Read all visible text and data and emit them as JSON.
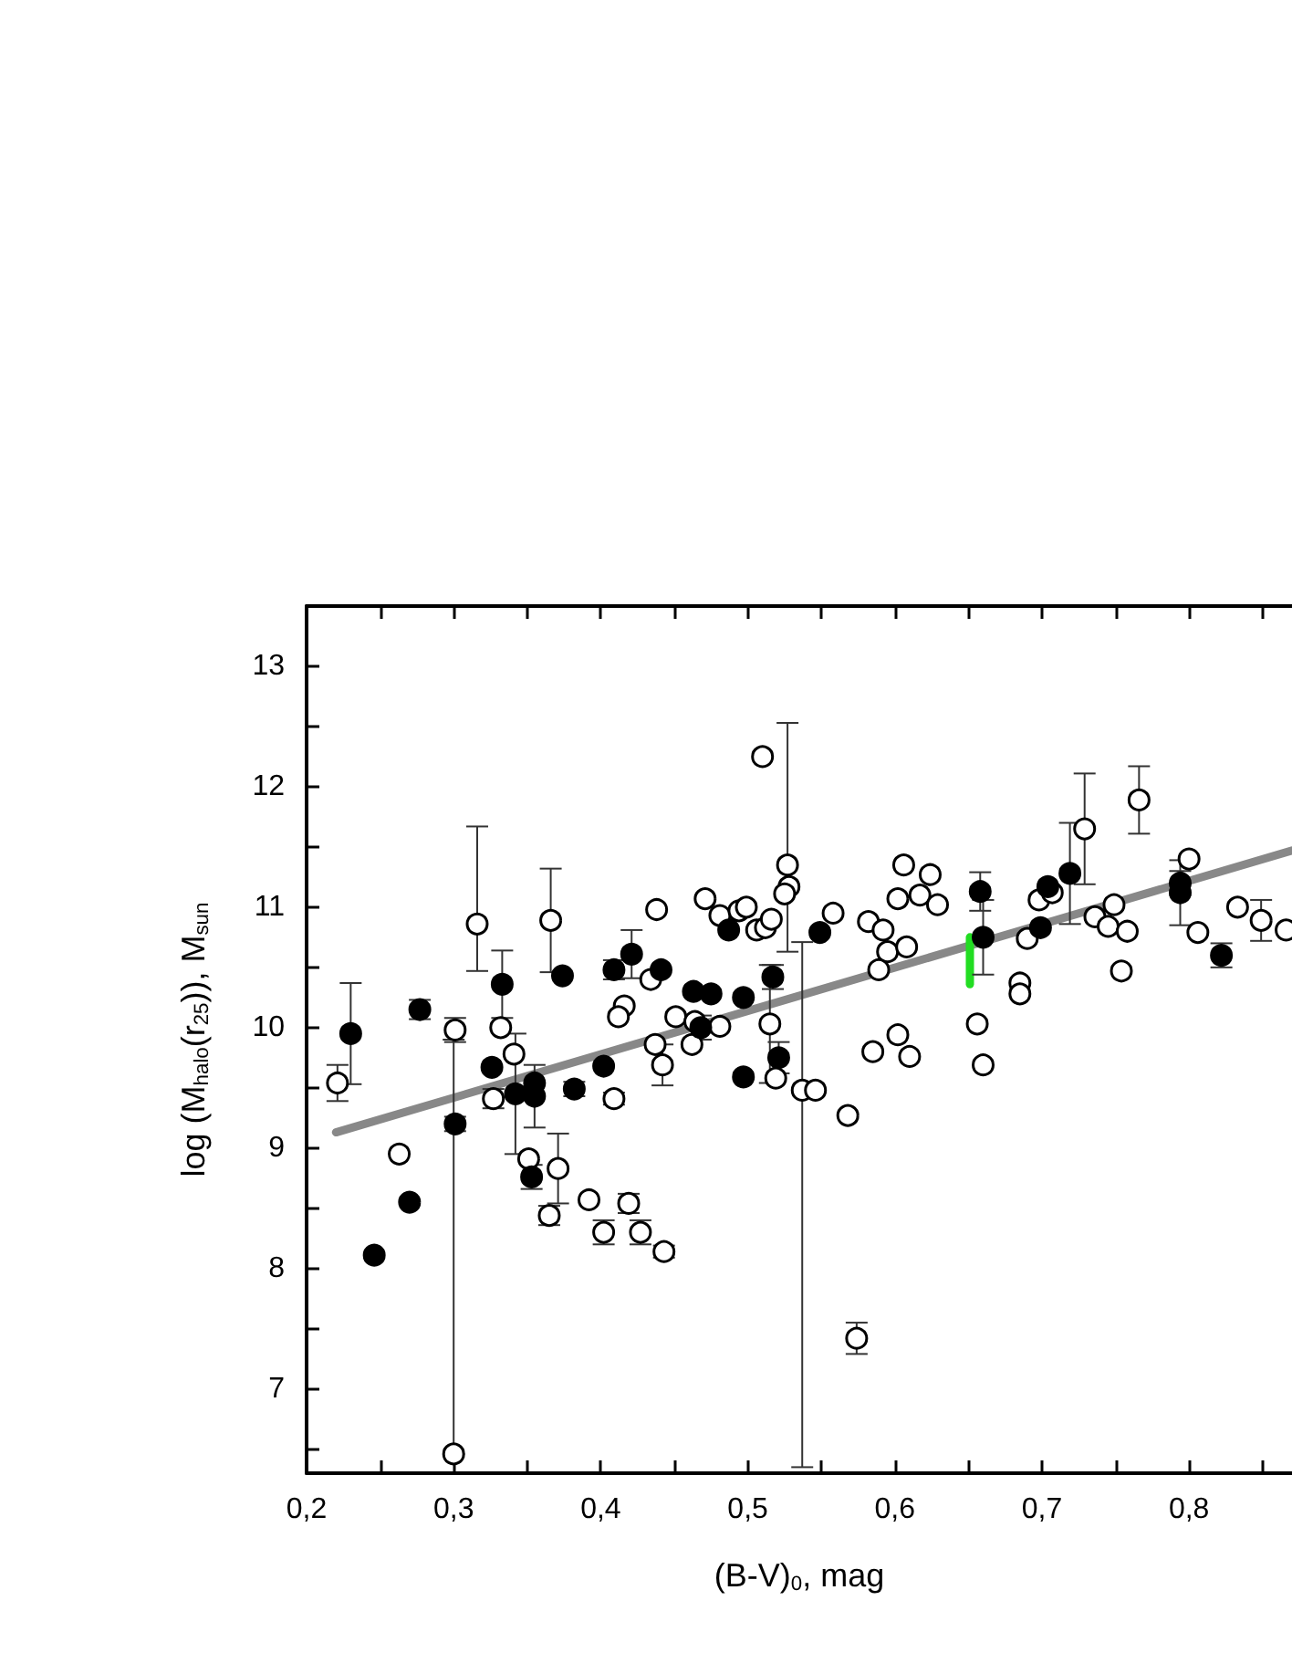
{
  "chart_data": {
    "type": "scatter",
    "xlabel": "(B-V)$_{0}$, mag",
    "ylabel": "log (M$_{halo}$(r$_{25}$)), M$_{sun}$",
    "xlim": [
      0.2,
      0.87
    ],
    "ylim": [
      6.3,
      13.5
    ],
    "xticks": [
      {
        "value": 0.2,
        "label": "0,2"
      },
      {
        "value": 0.25,
        "label": null
      },
      {
        "value": 0.3,
        "label": "0,3"
      },
      {
        "value": 0.35,
        "label": null
      },
      {
        "value": 0.4,
        "label": "0,4"
      },
      {
        "value": 0.45,
        "label": null
      },
      {
        "value": 0.5,
        "label": "0,5"
      },
      {
        "value": 0.55,
        "label": null
      },
      {
        "value": 0.6,
        "label": "0,6"
      },
      {
        "value": 0.65,
        "label": null
      },
      {
        "value": 0.7,
        "label": "0,7"
      },
      {
        "value": 0.75,
        "label": null
      },
      {
        "value": 0.8,
        "label": "0,8"
      },
      {
        "value": 0.85,
        "label": null
      }
    ],
    "yticks": [
      {
        "value": 6.5,
        "label": null
      },
      7,
      {
        "value": 7.5,
        "label": null
      },
      8,
      {
        "value": 8.5,
        "label": null
      },
      9,
      {
        "value": 9.5,
        "label": null
      },
      10,
      {
        "value": 10.5,
        "label": null
      },
      11,
      {
        "value": 11.5,
        "label": null
      },
      12,
      {
        "value": 12.5,
        "label": null
      },
      13
    ],
    "marker": "circle",
    "series": [
      {
        "type": "line",
        "marker": "none",
        "color": "#888888",
        "x": [
          0.22,
          0.87
        ],
        "values": [
          9.13,
          11.47
        ]
      },
      {
        "type": "line",
        "marker": "none",
        "color": "#22dd22",
        "x": [
          0.651,
          0.651
        ],
        "values": [
          10.36,
          10.75
        ]
      },
      {
        "color": "#000000",
        "x": [
          0.23,
          0.277,
          0.333,
          0.374,
          0.409,
          0.421,
          0.301,
          0.27,
          0.246,
          0.326,
          0.342,
          0.355,
          0.355,
          0.353,
          0.382,
          0.402,
          0.441,
          0.463,
          0.475,
          0.468,
          0.487,
          0.497,
          0.497,
          0.517,
          0.521,
          0.549,
          0.658,
          0.66,
          0.699,
          0.704,
          0.719,
          0.794,
          0.794,
          0.822
        ],
        "values": [
          9.95,
          10.15,
          10.36,
          10.43,
          10.48,
          10.61,
          9.2,
          8.55,
          8.11,
          9.67,
          9.45,
          9.54,
          9.43,
          8.76,
          9.49,
          9.68,
          10.48,
          10.3,
          10.28,
          10.0,
          10.81,
          10.25,
          9.59,
          10.42,
          9.75,
          10.79,
          11.13,
          10.75,
          10.83,
          11.17,
          11.28,
          11.2,
          11.12,
          10.6
        ],
        "errors": [
          0.42,
          0.08,
          0.28,
          null,
          0.08,
          0.2,
          0.06,
          null,
          null,
          null,
          0.5,
          null,
          0.26,
          0.1,
          0.06,
          null,
          null,
          null,
          null,
          0.1,
          null,
          null,
          null,
          0.1,
          0.13,
          null,
          0.16,
          0.31,
          null,
          null,
          0.42,
          0.1,
          0.27,
          0.1
        ]
      },
      {
        "color": "#ffffff",
        "x": [
          0.221,
          0.316,
          0.366,
          0.416,
          0.412,
          0.301,
          0.3,
          0.263,
          0.332,
          0.341,
          0.327,
          0.351,
          0.371,
          0.365,
          0.409,
          0.392,
          0.402,
          0.419,
          0.427,
          0.443,
          0.51,
          0.527,
          0.528,
          0.525,
          0.537,
          0.546,
          0.438,
          0.434,
          0.451,
          0.437,
          0.442,
          0.462,
          0.464,
          0.481,
          0.471,
          0.481,
          0.494,
          0.499,
          0.506,
          0.512,
          0.516,
          0.515,
          0.519,
          0.558,
          0.568,
          0.574,
          0.582,
          0.592,
          0.595,
          0.589,
          0.608,
          0.606,
          0.602,
          0.617,
          0.624,
          0.629,
          0.585,
          0.602,
          0.61,
          0.656,
          0.66,
          0.69,
          0.685,
          0.685,
          0.698,
          0.707,
          0.729,
          0.766,
          0.736,
          0.745,
          0.749,
          0.758,
          0.754,
          0.8,
          0.806,
          0.833,
          0.849,
          0.866
        ],
        "values": [
          9.54,
          10.86,
          10.89,
          10.18,
          10.09,
          9.98,
          6.46,
          8.95,
          10.0,
          9.78,
          9.41,
          8.91,
          8.83,
          8.44,
          9.41,
          8.57,
          8.3,
          8.54,
          8.3,
          8.14,
          12.25,
          11.35,
          11.17,
          11.11,
          9.48,
          9.48,
          10.98,
          10.4,
          10.09,
          9.86,
          9.69,
          9.86,
          10.05,
          10.01,
          11.07,
          10.93,
          10.97,
          11.0,
          10.81,
          10.83,
          10.9,
          10.03,
          9.58,
          10.95,
          9.27,
          7.42,
          10.88,
          10.81,
          10.63,
          10.48,
          10.67,
          11.35,
          11.07,
          11.1,
          11.27,
          11.02,
          9.8,
          9.94,
          9.76,
          10.03,
          9.69,
          10.74,
          10.37,
          10.28,
          11.06,
          11.12,
          11.65,
          11.89,
          10.92,
          10.84,
          11.02,
          10.8,
          10.47,
          11.4,
          10.79,
          11.0,
          10.89,
          10.81
        ],
        "errors": [
          0.15,
          [
            10.47,
            11.67
          ],
          0.43,
          null,
          null,
          0.1,
          [
            6.46,
            9.9
          ],
          null,
          null,
          null,
          0.08,
          null,
          0.29,
          0.08,
          0.05,
          null,
          0.1,
          0.08,
          0.1,
          0.05,
          null,
          [
            10.63,
            12.53
          ],
          null,
          null,
          [
            6.35,
            10.71
          ],
          null,
          null,
          null,
          null,
          null,
          0.17,
          null,
          null,
          null,
          null,
          null,
          null,
          null,
          null,
          null,
          null,
          0.49,
          null,
          null,
          null,
          0.13,
          null,
          null,
          null,
          null,
          null,
          null,
          null,
          null,
          null,
          null,
          null,
          null,
          null,
          null,
          null,
          null,
          null,
          null,
          null,
          null,
          0.46,
          0.28,
          null,
          null,
          null,
          null,
          null,
          null,
          null,
          null,
          0.17,
          null
        ]
      }
    ]
  }
}
